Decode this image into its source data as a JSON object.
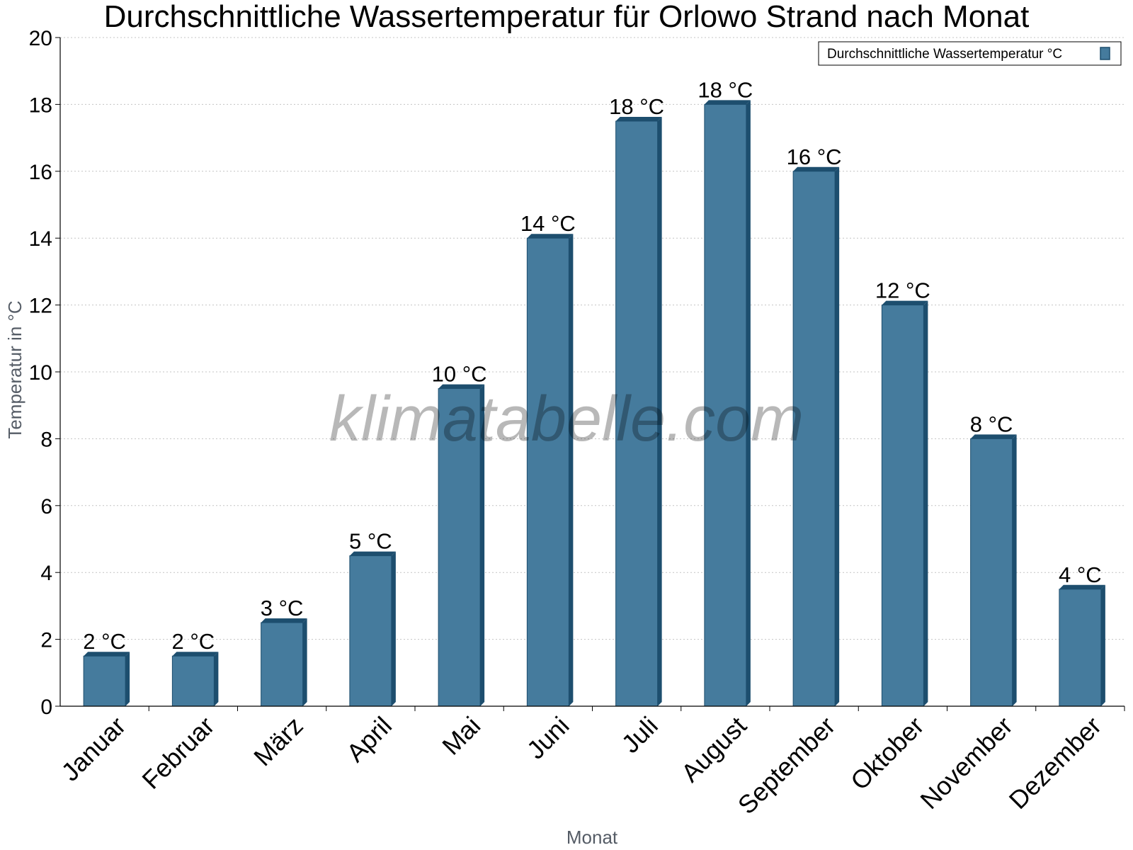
{
  "chart_data": {
    "type": "bar",
    "title": "Durchschnittliche Wassertemperatur für Orlowo Strand nach Monat",
    "xlabel": "Monat",
    "ylabel": "Temperatur in °C",
    "categories": [
      "Januar",
      "Februar",
      "März",
      "April",
      "Mai",
      "Juni",
      "Juli",
      "August",
      "September",
      "Oktober",
      "November",
      "Dezember"
    ],
    "series": [
      {
        "name": "Durchschnittliche Wassertemperatur °C",
        "values": [
          1.5,
          1.5,
          2.5,
          4.5,
          9.5,
          14,
          17.5,
          18,
          16,
          12,
          8,
          3.5
        ],
        "labels": [
          "2 °C",
          "2 °C",
          "3 °C",
          "5 °C",
          "10 °C",
          "14 °C",
          "18 °C",
          "18 °C",
          "16 °C",
          "12 °C",
          "8 °C",
          "4 °C"
        ],
        "color": "#457b9d",
        "edge_color": "#1d4e6e"
      }
    ],
    "ylim": [
      0,
      20
    ],
    "yticks": [
      0,
      2,
      4,
      6,
      8,
      10,
      12,
      14,
      16,
      18,
      20
    ],
    "grid": true,
    "legend_position": "top-right"
  },
  "watermark": "klimatabelle.com"
}
